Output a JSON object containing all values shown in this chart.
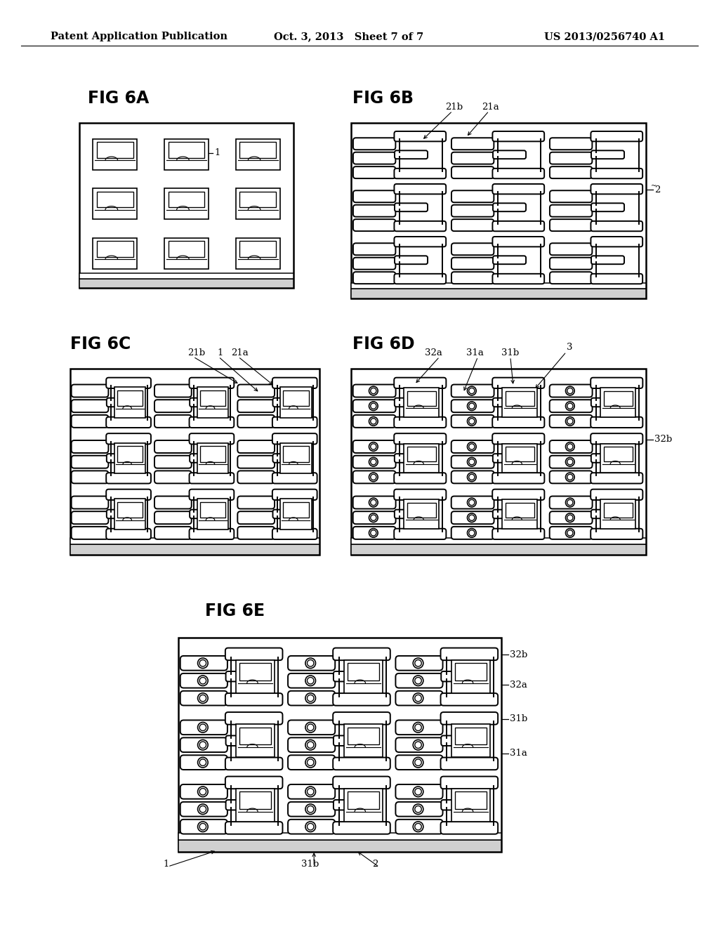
{
  "background_color": "#ffffff",
  "header_left": "Patent Application Publication",
  "header_center": "Oct. 3, 2013   Sheet 7 of 7",
  "header_right": "US 2013/0256740 A1",
  "lw_border": 1.8,
  "lw_thin": 1.0,
  "lw_lf": 1.4
}
